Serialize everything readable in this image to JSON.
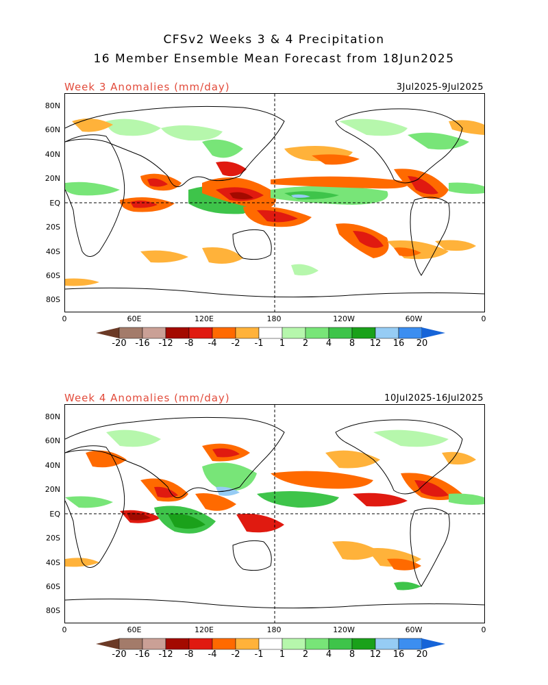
{
  "header": {
    "title_line1": "CFSv2 Weeks 3 & 4 Precipitation",
    "title_line2": "16 Member Ensemble Mean Forecast from 18Jun2025"
  },
  "panels": [
    {
      "id": "week3",
      "label": "Week 3 Anomalies (mm/day)",
      "date_range": "3Jul2025-9Jul2025"
    },
    {
      "id": "week4",
      "label": "Week 4 Anomalies (mm/day)",
      "date_range": "10Jul2025-16Jul2025"
    }
  ],
  "lat_ticks": [
    "80N",
    "60N",
    "40N",
    "20N",
    "EQ",
    "20S",
    "40S",
    "60S",
    "80S"
  ],
  "lon_ticks": [
    "0",
    "60E",
    "120E",
    "180",
    "120W",
    "60W",
    "0"
  ],
  "colorbar": {
    "labels": [
      "-20",
      "-16",
      "-12",
      "-8",
      "-4",
      "-2",
      "-1",
      "1",
      "2",
      "4",
      "8",
      "12",
      "16",
      "20"
    ],
    "colors": [
      "#6b3a26",
      "#a37b6a",
      "#caa096",
      "#a30a00",
      "#e01a10",
      "#ff6a00",
      "#ffb23a",
      "#ffffff",
      "#b6f7ac",
      "#78e578",
      "#3ec44a",
      "#1aa11a",
      "#96ccf4",
      "#3c8ef0",
      "#1664d8"
    ]
  },
  "colors": {
    "dry_strong": "#e01a10",
    "dry_mid": "#ff6a00",
    "dry_light": "#ffb23a",
    "wet_light": "#b6f7ac",
    "wet_mid": "#3ec44a",
    "wet_strong": "#1aa11a",
    "wet_blue": "#96ccf4",
    "title_red": "#e24a3a"
  }
}
